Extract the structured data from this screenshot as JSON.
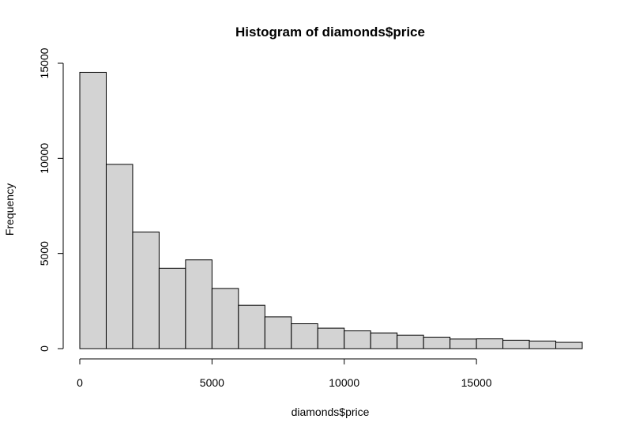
{
  "chart_data": {
    "type": "bar",
    "title": "Histogram of diamonds$price",
    "xlabel": "diamonds$price",
    "ylabel": "Frequency",
    "bin_width": 1000,
    "bin_starts": [
      0,
      1000,
      2000,
      3000,
      4000,
      5000,
      6000,
      7000,
      8000,
      9000,
      10000,
      11000,
      12000,
      13000,
      14000,
      15000,
      16000,
      17000,
      18000
    ],
    "values": [
      14524,
      9683,
      6129,
      4225,
      4665,
      3163,
      2278,
      1668,
      1307,
      1076,
      934,
      825,
      701,
      603,
      504,
      513,
      442,
      399,
      330
    ],
    "xlim": [
      0,
      19000
    ],
    "ylim": [
      0,
      15000
    ],
    "x_ticks": [
      0,
      5000,
      10000,
      15000
    ],
    "x_tick_labels": [
      "0",
      "5000",
      "10000",
      "15000"
    ],
    "y_ticks": [
      0,
      5000,
      10000,
      15000
    ],
    "y_tick_labels": [
      "0",
      "5000",
      "10000",
      "15000"
    ],
    "grid": false
  }
}
